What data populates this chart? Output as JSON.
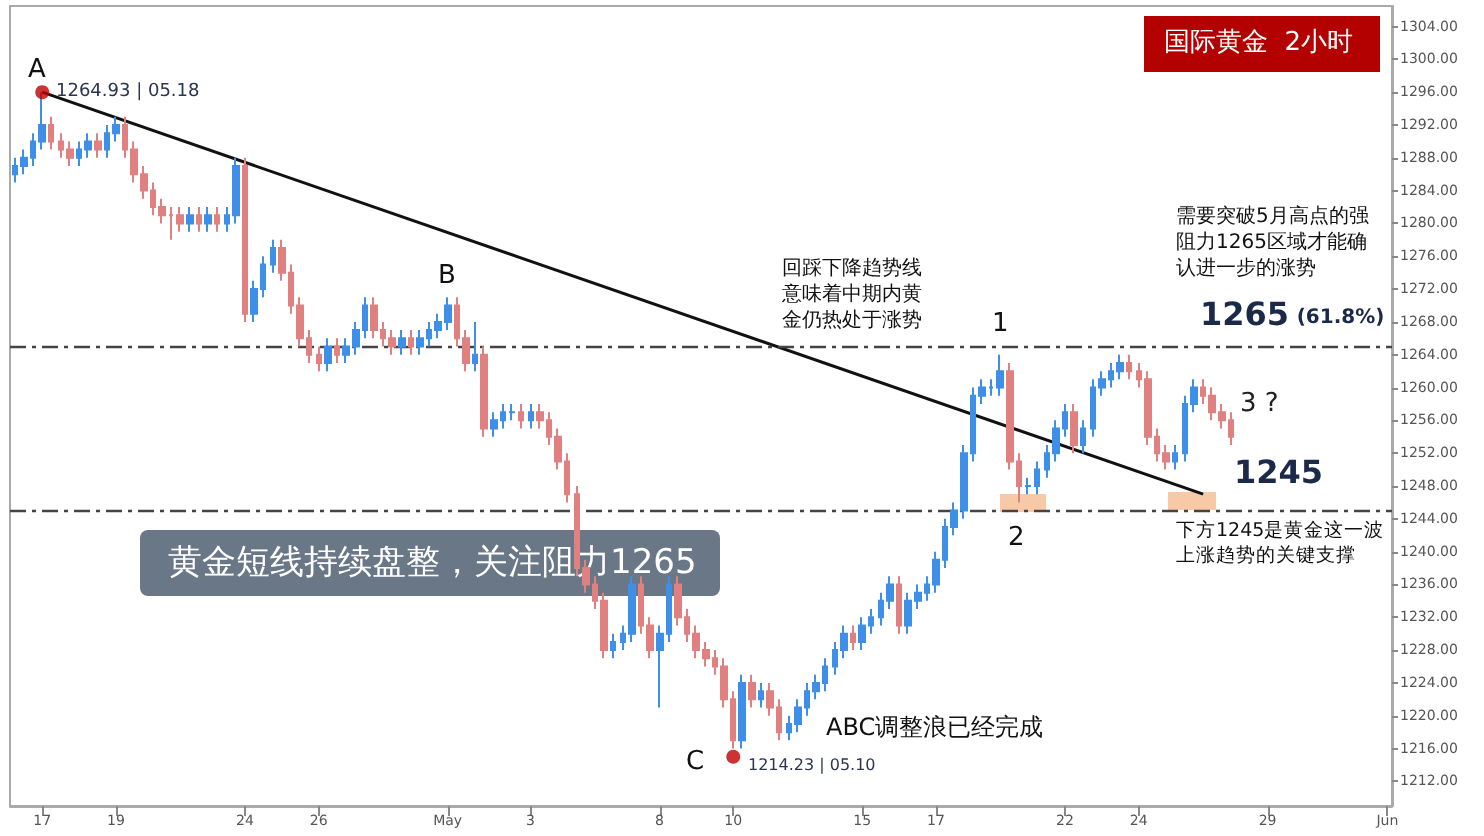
{
  "chart_data": {
    "type": "candlestick",
    "title": "黄金短线持续盘整，关注阻力1265",
    "subtitle": "国际黄金  2小时",
    "categories": [
      null,
      null,
      null,
      "17",
      null,
      null,
      null,
      null,
      null,
      null,
      null,
      "19",
      null,
      null,
      null,
      null,
      null,
      null,
      null,
      null,
      null,
      null,
      null,
      null,
      null,
      "24",
      null,
      null,
      null,
      null,
      null,
      null,
      null,
      "26",
      null,
      null,
      null,
      null,
      null,
      null,
      null,
      null,
      null,
      null,
      null,
      null,
      null,
      "May",
      null,
      null,
      null,
      null,
      null,
      null,
      null,
      null,
      "3",
      null,
      null,
      null,
      null,
      null,
      null,
      null,
      null,
      null,
      null,
      null,
      null,
      null,
      "8",
      null,
      null,
      null,
      null,
      null,
      null,
      null,
      "10",
      null,
      null,
      null,
      null,
      null,
      null,
      null,
      null,
      null,
      null,
      null,
      null,
      null,
      "15",
      null,
      null,
      null,
      null,
      null,
      null,
      null,
      "17",
      null,
      null,
      null,
      null,
      null,
      null,
      null,
      null,
      null,
      null,
      null,
      null,
      null,
      "22",
      null,
      null,
      null,
      null,
      null,
      null,
      null,
      "24",
      null,
      null,
      null,
      null,
      null,
      null,
      null,
      null,
      null,
      null,
      null,
      null,
      null,
      "29",
      null,
      null,
      null,
      null,
      null,
      null,
      null,
      null,
      null,
      null,
      null,
      null,
      "Jun"
    ],
    "ohlc": [
      [
        1286,
        1288,
        1285,
        1287
      ],
      [
        1287,
        1289,
        1286,
        1288
      ],
      [
        1288,
        1291,
        1287,
        1290
      ],
      [
        1290,
        1296,
        1289,
        1292
      ],
      [
        1292,
        1293,
        1289,
        1290
      ],
      [
        1290,
        1291,
        1288,
        1289
      ],
      [
        1289,
        1290,
        1287,
        1288
      ],
      [
        1288,
        1290,
        1287,
        1289
      ],
      [
        1289,
        1291,
        1288,
        1290
      ],
      [
        1290,
        1291,
        1288,
        1289
      ],
      [
        1289,
        1292,
        1288,
        1291
      ],
      [
        1291,
        1293,
        1290,
        1292
      ],
      [
        1292,
        1293,
        1288,
        1289
      ],
      [
        1289,
        1290,
        1285,
        1286
      ],
      [
        1286,
        1287,
        1283,
        1284
      ],
      [
        1284,
        1285,
        1281,
        1282
      ],
      [
        1282,
        1283,
        1280,
        1281
      ],
      [
        1281,
        1282,
        1278,
        1281
      ],
      [
        1281,
        1282,
        1279,
        1280
      ],
      [
        1280,
        1282,
        1279,
        1281
      ],
      [
        1281,
        1282,
        1279,
        1280
      ],
      [
        1280,
        1282,
        1279,
        1281
      ],
      [
        1281,
        1282,
        1279,
        1280
      ],
      [
        1280,
        1282,
        1279,
        1281
      ],
      [
        1281,
        1288,
        1280,
        1287
      ],
      [
        1287,
        1288,
        1268,
        1269
      ],
      [
        1269,
        1273,
        1268,
        1272
      ],
      [
        1272,
        1276,
        1271,
        1275
      ],
      [
        1275,
        1278,
        1274,
        1277
      ],
      [
        1277,
        1278,
        1273,
        1274
      ],
      [
        1274,
        1275,
        1269,
        1270
      ],
      [
        1270,
        1271,
        1265,
        1266
      ],
      [
        1266,
        1267,
        1263,
        1264
      ],
      [
        1264,
        1265,
        1262,
        1263
      ],
      [
        1263,
        1266,
        1262,
        1265
      ],
      [
        1265,
        1266,
        1263,
        1264
      ],
      [
        1264,
        1266,
        1263,
        1265
      ],
      [
        1265,
        1268,
        1264,
        1267
      ],
      [
        1267,
        1271,
        1266,
        1270
      ],
      [
        1270,
        1271,
        1266,
        1267
      ],
      [
        1267,
        1268,
        1265,
        1266
      ],
      [
        1266,
        1267,
        1264,
        1265
      ],
      [
        1265,
        1267,
        1264,
        1266
      ],
      [
        1266,
        1267,
        1264,
        1265
      ],
      [
        1265,
        1267,
        1264,
        1266
      ],
      [
        1266,
        1268,
        1265,
        1267
      ],
      [
        1267,
        1269,
        1266,
        1268
      ],
      [
        1268,
        1271,
        1267,
        1270
      ],
      [
        1270,
        1271,
        1265,
        1266
      ],
      [
        1266,
        1267,
        1262,
        1263
      ],
      [
        1263,
        1268,
        1262,
        1264
      ],
      [
        1264,
        1265,
        1254,
        1255
      ],
      [
        1255,
        1257,
        1254,
        1256
      ],
      [
        1256,
        1258,
        1255,
        1257
      ],
      [
        1257,
        1258,
        1256,
        1257
      ],
      [
        1257,
        1258,
        1255,
        1256
      ],
      [
        1256,
        1258,
        1255,
        1257
      ],
      [
        1257,
        1258,
        1255,
        1256
      ],
      [
        1256,
        1257,
        1253,
        1254
      ],
      [
        1254,
        1255,
        1250,
        1251
      ],
      [
        1251,
        1252,
        1246,
        1247
      ],
      [
        1247,
        1248,
        1237,
        1238
      ],
      [
        1238,
        1239,
        1235,
        1236
      ],
      [
        1236,
        1237,
        1233,
        1234
      ],
      [
        1234,
        1235,
        1227,
        1228
      ],
      [
        1228,
        1230,
        1227,
        1229
      ],
      [
        1229,
        1231,
        1228,
        1230
      ],
      [
        1230,
        1237,
        1229,
        1236
      ],
      [
        1236,
        1237,
        1230,
        1231
      ],
      [
        1231,
        1232,
        1227,
        1228
      ],
      [
        1228,
        1231,
        1221,
        1230
      ],
      [
        1230,
        1237,
        1229,
        1236
      ],
      [
        1236,
        1237,
        1231,
        1232
      ],
      [
        1232,
        1233,
        1229,
        1230
      ],
      [
        1230,
        1231,
        1227,
        1228
      ],
      [
        1228,
        1229,
        1226,
        1227
      ],
      [
        1227,
        1228,
        1225,
        1226
      ],
      [
        1226,
        1227,
        1221,
        1222
      ],
      [
        1222,
        1223,
        1216,
        1217
      ],
      [
        1217,
        1225,
        1216,
        1224
      ],
      [
        1224,
        1225,
        1221,
        1222
      ],
      [
        1222,
        1224,
        1221,
        1223
      ],
      [
        1223,
        1224,
        1220,
        1221
      ],
      [
        1221,
        1222,
        1217,
        1218
      ],
      [
        1218,
        1220,
        1217,
        1219
      ],
      [
        1219,
        1222,
        1218,
        1221
      ],
      [
        1221,
        1224,
        1220,
        1223
      ],
      [
        1223,
        1225,
        1222,
        1224
      ],
      [
        1224,
        1227,
        1223,
        1226
      ],
      [
        1226,
        1229,
        1225,
        1228
      ],
      [
        1228,
        1231,
        1227,
        1230
      ],
      [
        1230,
        1231,
        1228,
        1229
      ],
      [
        1229,
        1232,
        1228,
        1231
      ],
      [
        1231,
        1233,
        1230,
        1232
      ],
      [
        1232,
        1235,
        1231,
        1234
      ],
      [
        1234,
        1237,
        1233,
        1236
      ],
      [
        1236,
        1237,
        1230,
        1231
      ],
      [
        1231,
        1235,
        1230,
        1234
      ],
      [
        1234,
        1236,
        1233,
        1235
      ],
      [
        1235,
        1237,
        1234,
        1236
      ],
      [
        1236,
        1240,
        1235,
        1239
      ],
      [
        1239,
        1244,
        1238,
        1243
      ],
      [
        1243,
        1246,
        1242,
        1245
      ],
      [
        1245,
        1253,
        1244,
        1252
      ],
      [
        1252,
        1260,
        1251,
        1259
      ],
      [
        1259,
        1261,
        1258,
        1260
      ],
      [
        1260,
        1261,
        1259,
        1260
      ],
      [
        1260,
        1264,
        1259,
        1262
      ],
      [
        1262,
        1263,
        1250,
        1251
      ],
      [
        1251,
        1252,
        1246,
        1248
      ],
      [
        1248,
        1249,
        1247,
        1248
      ],
      [
        1248,
        1251,
        1247,
        1250
      ],
      [
        1250,
        1253,
        1249,
        1252
      ],
      [
        1252,
        1256,
        1251,
        1255
      ],
      [
        1255,
        1258,
        1254,
        1257
      ],
      [
        1257,
        1258,
        1252,
        1253
      ],
      [
        1253,
        1256,
        1252,
        1255
      ],
      [
        1255,
        1261,
        1254,
        1260
      ],
      [
        1260,
        1262,
        1259,
        1261
      ],
      [
        1261,
        1263,
        1260,
        1262
      ],
      [
        1262,
        1264,
        1261,
        1263
      ],
      [
        1263,
        1264,
        1261,
        1262
      ],
      [
        1262,
        1263,
        1260,
        1261
      ],
      [
        1261,
        1262,
        1253,
        1254
      ],
      [
        1254,
        1255,
        1251,
        1252
      ],
      [
        1252,
        1253,
        1250,
        1251
      ],
      [
        1251,
        1253,
        1250,
        1252
      ],
      [
        1252,
        1259,
        1251,
        1258
      ],
      [
        1258,
        1261,
        1257,
        1260
      ],
      [
        1260,
        1261,
        1258,
        1259
      ],
      [
        1259,
        1260,
        1256,
        1257
      ],
      [
        1257,
        1258,
        1255,
        1256
      ],
      [
        1256,
        1257,
        1253,
        1254
      ],
      null,
      null,
      null,
      null,
      null,
      null,
      null,
      null,
      null,
      null,
      null,
      null,
      null,
      null,
      null,
      null,
      null
    ],
    "colors": [
      "#3d8fe8",
      "#3d8fe8",
      "#3d8fe8",
      "#3d8fe8",
      "#e08080",
      "#e08080",
      "#e08080",
      "#3d8fe8",
      "#3d8fe8",
      "#e08080",
      "#3d8fe8",
      "#3d8fe8",
      "#e08080",
      "#e08080",
      "#e08080",
      "#e08080",
      "#e08080",
      "#e08080",
      "#e08080",
      "#3d8fe8",
      "#e08080",
      "#3d8fe8",
      "#e08080",
      "#3d8fe8",
      "#3d8fe8",
      "#e08080",
      "#3d8fe8",
      "#3d8fe8",
      "#3d8fe8",
      "#e08080",
      "#e08080",
      "#e08080",
      "#e08080",
      "#e08080",
      "#3d8fe8",
      "#e08080",
      "#3d8fe8",
      "#3d8fe8",
      "#3d8fe8",
      "#e08080",
      "#e08080",
      "#e08080",
      "#3d8fe8",
      "#e08080",
      "#3d8fe8",
      "#3d8fe8",
      "#3d8fe8",
      "#3d8fe8",
      "#e08080",
      "#e08080",
      "#3d8fe8",
      "#e08080",
      "#3d8fe8",
      "#3d8fe8",
      "#3d8fe8",
      "#e08080",
      "#3d8fe8",
      "#e08080",
      "#e08080",
      "#e08080",
      "#e08080",
      "#e08080",
      "#e08080",
      "#e08080",
      "#e08080",
      "#3d8fe8",
      "#3d8fe8",
      "#3d8fe8",
      "#e08080",
      "#e08080",
      "#3d8fe8",
      "#3d8fe8",
      "#e08080",
      "#e08080",
      "#e08080",
      "#e08080",
      "#e08080",
      "#e08080",
      "#e08080",
      "#3d8fe8",
      "#e08080",
      "#3d8fe8",
      "#e08080",
      "#e08080",
      "#3d8fe8",
      "#3d8fe8",
      "#3d8fe8",
      "#3d8fe8",
      "#3d8fe8",
      "#3d8fe8",
      "#3d8fe8",
      "#e08080",
      "#3d8fe8",
      "#3d8fe8",
      "#3d8fe8",
      "#3d8fe8",
      "#e08080",
      "#3d8fe8",
      "#3d8fe8",
      "#3d8fe8",
      "#3d8fe8",
      "#3d8fe8",
      "#3d8fe8",
      "#3d8fe8",
      "#3d8fe8",
      "#3d8fe8",
      "#3d8fe8",
      "#3d8fe8",
      "#e08080",
      "#e08080",
      "#3d8fe8",
      "#3d8fe8",
      "#3d8fe8",
      "#3d8fe8",
      "#3d8fe8",
      "#e08080",
      "#3d8fe8",
      "#3d8fe8",
      "#3d8fe8",
      "#3d8fe8",
      "#3d8fe8",
      "#e08080",
      "#e08080",
      "#e08080",
      "#e08080",
      "#e08080",
      "#3d8fe8",
      "#3d8fe8",
      "#3d8fe8",
      "#e08080",
      "#e08080",
      "#e08080",
      "#e08080",
      null,
      null,
      null,
      null,
      null,
      null,
      null,
      null,
      null,
      null,
      null,
      null,
      null,
      null,
      null,
      null,
      null
    ],
    "series": [
      {
        "type": "line",
        "color": "#111111",
        "values": [
          null,
          null,
          null,
          1296,
          null,
          null,
          null,
          null,
          null,
          null,
          null,
          null,
          null,
          null,
          null,
          null,
          null,
          null,
          null,
          null,
          null,
          null,
          null,
          null,
          null,
          null,
          null,
          null,
          null,
          null,
          null,
          null,
          null,
          null,
          null,
          null,
          null,
          null,
          null,
          null,
          null,
          null,
          null,
          null,
          null,
          null,
          null,
          null,
          null,
          null,
          null,
          null,
          null,
          null,
          null,
          null,
          null,
          null,
          null,
          null,
          null,
          null,
          null,
          null,
          null,
          null,
          null,
          null,
          null,
          null,
          null,
          null,
          null,
          null,
          null,
          null,
          null,
          null,
          null,
          null,
          null,
          null,
          null,
          null,
          null,
          null,
          null,
          null,
          null,
          null,
          null,
          null,
          null,
          null,
          null,
          null,
          null,
          null,
          null,
          null,
          null,
          null,
          null,
          null,
          null,
          null,
          null,
          null,
          null,
          null,
          null,
          null,
          null,
          null,
          null,
          null,
          null,
          null,
          null,
          null,
          null,
          null,
          null,
          null,
          null,
          null,
          null,
          null,
          null,
          1247,
          null,
          null,
          null,
          null,
          null,
          null,
          null,
          null,
          null,
          null,
          null,
          null,
          null,
          null,
          null,
          null,
          null,
          null,
          null,
          null
        ]
      },
      {
        "type": "scatter",
        "color": "#c00000",
        "marker": "circle",
        "values": [
          null,
          null,
          null,
          1296,
          null,
          null,
          null,
          null,
          null,
          null,
          null,
          null,
          null,
          null,
          null,
          null,
          null,
          null,
          null,
          null,
          null,
          null,
          null,
          null,
          null,
          null,
          null,
          null,
          null,
          null,
          null,
          null,
          null,
          null,
          null,
          null,
          null,
          null,
          null,
          null,
          null,
          null,
          null,
          null,
          null,
          null,
          null,
          null,
          null,
          null,
          null,
          null,
          null,
          null,
          null,
          null,
          null,
          null,
          null,
          null,
          null,
          null,
          null,
          null,
          null,
          null,
          null,
          null,
          null,
          null,
          null,
          null,
          null,
          null,
          null,
          null,
          null,
          null,
          1215,
          null,
          null,
          null,
          null,
          null,
          null,
          null,
          null,
          null,
          null,
          null,
          null,
          null,
          null,
          null,
          null,
          null,
          null,
          null,
          null,
          null,
          null,
          null,
          null,
          null,
          null,
          null,
          null,
          null,
          null,
          null,
          null,
          null,
          null,
          null,
          null,
          null,
          null,
          null,
          null,
          null,
          null,
          null,
          null,
          null,
          null,
          null,
          null,
          null,
          null,
          null,
          null,
          null,
          null,
          null,
          null,
          null,
          null,
          null,
          null,
          null,
          null,
          null,
          null,
          null,
          null,
          null,
          null,
          null,
          null,
          null
        ]
      }
    ],
    "ylim": [
      1209,
      1306.5
    ],
    "yticks": [
      {
        "value": 1212,
        "label": "1212.00"
      },
      {
        "value": 1216,
        "label": "1216.00"
      },
      {
        "value": 1220,
        "label": "1220.00"
      },
      {
        "value": 1224,
        "label": "1224.00"
      },
      {
        "value": 1228,
        "label": "1228.00"
      },
      {
        "value": 1232,
        "label": "1232.00"
      },
      {
        "value": 1236,
        "label": "1236.00"
      },
      {
        "value": 1240,
        "label": "1240.00"
      },
      {
        "value": 1244,
        "label": "1244.00"
      },
      {
        "value": 1248,
        "label": "1248.00"
      },
      {
        "value": 1252,
        "label": "1252.00"
      },
      {
        "value": 1256,
        "label": "1256.00"
      },
      {
        "value": 1260,
        "label": "1260.00"
      },
      {
        "value": 1264,
        "label": "1264.00"
      },
      {
        "value": 1268,
        "label": "1268.00"
      },
      {
        "value": 1272,
        "label": "1272.00"
      },
      {
        "value": 1276,
        "label": "1276.00"
      },
      {
        "value": 1280,
        "label": "1280.00"
      },
      {
        "value": 1284,
        "label": "1284.00"
      },
      {
        "value": 1288,
        "label": "1288.00"
      },
      {
        "value": 1292,
        "label": "1292.00"
      },
      {
        "value": 1296,
        "label": "1296.00"
      },
      {
        "value": 1300,
        "label": "1300.00"
      },
      {
        "value": 1304,
        "label": "1304.00"
      }
    ],
    "ref_lines": [
      {
        "axis": "y",
        "value": 1265,
        "label": "1265 (61.8%)",
        "color": "#444444",
        "line_style": "dashed"
      },
      {
        "axis": "y",
        "value": 1245,
        "label": "1245",
        "color": "#444444",
        "line_style": "dashed"
      }
    ],
    "annotations": [
      "A",
      "1264.93 | 05.18",
      "B",
      "C",
      "1214.23 | 05.10",
      "1",
      "2",
      "3 ?",
      "回踩下降趋势线意味着中期内黄金仍热处于涨势",
      "需要突破5月高点的强阻力1265区域才能确认进一步的涨势",
      "下方1245是黄金这一波上涨趋势的关键支撑",
      "ABC调整浪已经完成"
    ]
  }
}
